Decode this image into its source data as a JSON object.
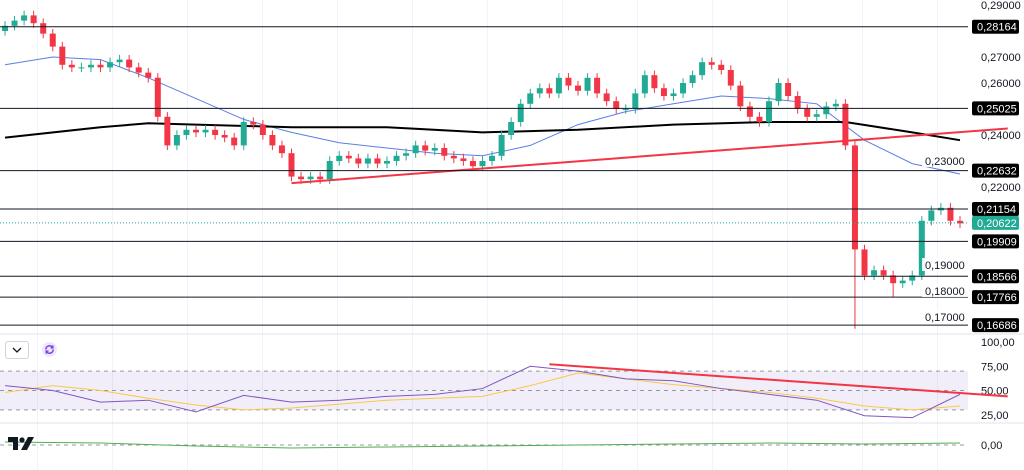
{
  "chart_data": {
    "type": "candlestick",
    "price_axis": {
      "min": 0.165,
      "max": 0.29,
      "ticks": [
        "0,29000",
        "0,27000",
        "0,26000",
        "0,24000",
        "0,23000",
        "0,22000",
        "0,19000",
        "0,18000",
        "0,17000"
      ],
      "tick_values": [
        0.29,
        0.27,
        0.26,
        0.24,
        0.23,
        0.22,
        0.19,
        0.18,
        0.17
      ]
    },
    "close": [
      0.282,
      0.284,
      0.286,
      0.283,
      0.279,
      0.274,
      0.267,
      0.266,
      0.266,
      0.267,
      0.266,
      0.268,
      0.269,
      0.266,
      0.264,
      0.262,
      0.247,
      0.236,
      0.24,
      0.242,
      0.241,
      0.242,
      0.24,
      0.239,
      0.236,
      0.245,
      0.244,
      0.24,
      0.236,
      0.233,
      0.224,
      0.223,
      0.224,
      0.223,
      0.23,
      0.232,
      0.231,
      0.229,
      0.231,
      0.229,
      0.23,
      0.232,
      0.233,
      0.236,
      0.234,
      0.235,
      0.232,
      0.231,
      0.23,
      0.228,
      0.23,
      0.232,
      0.24,
      0.245,
      0.252,
      0.256,
      0.258,
      0.256,
      0.262,
      0.259,
      0.257,
      0.262,
      0.256,
      0.253,
      0.25,
      0.25,
      0.256,
      0.263,
      0.258,
      0.255,
      0.256,
      0.26,
      0.263,
      0.268,
      0.267,
      0.265,
      0.259,
      0.251,
      0.247,
      0.245,
      0.253,
      0.26,
      0.255,
      0.25,
      0.247,
      0.248,
      0.251,
      0.252,
      0.236,
      0.196,
      0.186,
      0.188,
      0.186,
      0.183,
      0.184,
      0.186,
      0.207,
      0.211,
      0.212,
      0.207,
      0.206
    ],
    "low_overrides": {
      "89": 0.1655,
      "93": 0.1775
    },
    "ma_blue": {
      "step": 5,
      "values": [
        0.267,
        0.27,
        0.269,
        0.262,
        0.254,
        0.246,
        0.241,
        0.237,
        0.235,
        0.233,
        0.232,
        0.236,
        0.244,
        0.249,
        0.252,
        0.255,
        0.254,
        0.252,
        0.238,
        0.229,
        0.225
      ]
    },
    "ma_black": {
      "points": [
        [
          0,
          0.239
        ],
        [
          10,
          0.243
        ],
        [
          15,
          0.2445
        ],
        [
          20,
          0.244
        ],
        [
          30,
          0.243
        ],
        [
          40,
          0.243
        ],
        [
          50,
          0.241
        ],
        [
          60,
          0.242
        ],
        [
          70,
          0.244
        ],
        [
          80,
          0.245
        ],
        [
          88,
          0.245
        ],
        [
          95,
          0.241
        ],
        [
          100,
          0.238
        ]
      ]
    },
    "trendline": {
      "from": [
        30,
        0.2215
      ],
      "to": [
        105,
        0.2425
      ]
    },
    "levels": [
      {
        "value": 0.28164,
        "label": "0,28164"
      },
      {
        "value": 0.25025,
        "label": "0,25025"
      },
      {
        "value": 0.22632,
        "label": "0,22632"
      },
      {
        "value": 0.21154,
        "label": "0,21154"
      },
      {
        "value": 0.19909,
        "label": "0,19909"
      },
      {
        "value": 0.18566,
        "label": "0,18566"
      },
      {
        "value": 0.17766,
        "label": "0,17766"
      },
      {
        "value": 0.16686,
        "label": "0,16686"
      }
    ],
    "current_price": {
      "value": 0.20622,
      "label": "0,20622"
    },
    "rsi": {
      "ticks": [
        "100,00",
        "75,00",
        "50,00",
        "25,00"
      ],
      "tick_values": [
        100,
        75,
        50,
        25
      ],
      "band": [
        30,
        70
      ],
      "step": 5,
      "values": [
        55,
        50,
        38,
        40,
        28,
        45,
        38,
        40,
        44,
        46,
        52,
        75,
        70,
        62,
        60,
        52,
        46,
        40,
        24,
        22,
        46
      ],
      "ma": [
        48,
        55,
        50,
        42,
        35,
        30,
        32,
        36,
        40,
        42,
        44,
        55,
        68,
        62,
        56,
        52,
        48,
        42,
        34,
        30,
        34
      ],
      "trendline": {
        "from": [
          57,
          77
        ],
        "to": [
          105,
          44
        ]
      }
    },
    "oscillator": {
      "ticks": [
        "0,00"
      ],
      "step": 10,
      "values": [
        0.3,
        0.2,
        -0.1,
        -0.3,
        -0.2,
        -0.1,
        0.0,
        0.1,
        0.2,
        0.1,
        0.2
      ]
    },
    "colors": {
      "up": "#22ab94",
      "down": "#f23645",
      "ma_blue": "#5b7ee5",
      "ma_black": "#000000",
      "trend": "#f23645",
      "rsi": "#7e57c2",
      "rsi_ma": "#f7c948",
      "osc": "#4caf50",
      "current": "#22ab94"
    }
  },
  "ui": {
    "collapse_icon": "chevron-down-icon",
    "refresh_icon": "refresh-icon",
    "logo": "TV"
  }
}
